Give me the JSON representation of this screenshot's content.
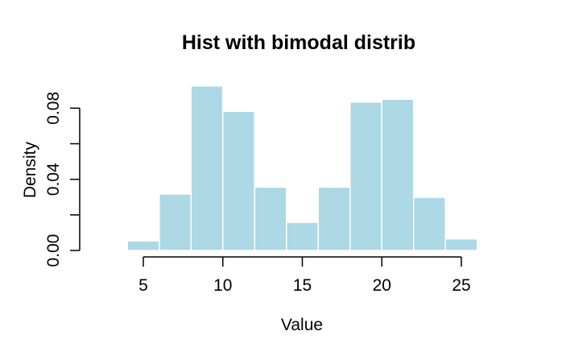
{
  "figure": {
    "title": "Hist with bimodal distrib",
    "xlabel": "Value",
    "ylabel": "Density"
  },
  "chart_data": {
    "type": "bar",
    "subtype": "histogram",
    "title": "Hist with bimodal distrib",
    "xlabel": "Value",
    "ylabel": "Density",
    "bin_edges": [
      4,
      6,
      8,
      10,
      12,
      14,
      16,
      18,
      20,
      22,
      24,
      26
    ],
    "densities": [
      0.0054,
      0.0317,
      0.0925,
      0.0782,
      0.0356,
      0.0158,
      0.0356,
      0.0834,
      0.085,
      0.0299,
      0.0065
    ],
    "x_ticks": [
      5,
      10,
      15,
      20,
      25
    ],
    "x_tick_labels": [
      "5",
      "10",
      "15",
      "20",
      "25"
    ],
    "y_ticks": [
      0,
      0.02,
      0.04,
      0.06,
      0.08
    ],
    "y_tick_major": [
      {
        "value": 0,
        "label": "0.00"
      },
      {
        "value": 0.04,
        "label": "0.04"
      },
      {
        "value": 0.08,
        "label": "0.08"
      }
    ],
    "xlim": [
      5,
      25
    ],
    "ylim": [
      0,
      0.08
    ],
    "grid": false,
    "legend": null,
    "colors": {
      "bar_fill": "#ADD8E6",
      "bar_border": "#FFFFFF",
      "axis": "#000000",
      "background": "#FFFFFF"
    }
  }
}
